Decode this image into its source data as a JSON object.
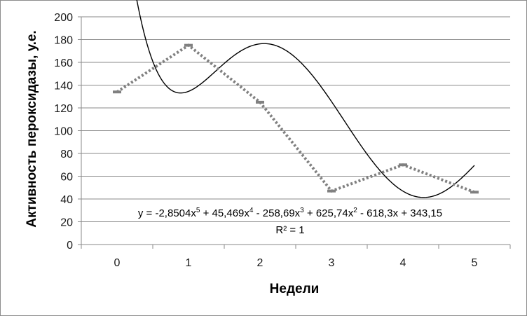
{
  "chart_data": {
    "type": "line",
    "title": "",
    "xlabel": "Недели",
    "ylabel": "Активность пероксидазы, у.е.",
    "x": [
      0,
      1,
      2,
      3,
      4,
      5
    ],
    "categories": [
      "0",
      "1",
      "2",
      "3",
      "4",
      "5"
    ],
    "ylim": [
      0,
      200
    ],
    "yticks": [
      0,
      20,
      40,
      60,
      80,
      100,
      120,
      140,
      160,
      180,
      200
    ],
    "grid": true,
    "legend": "none",
    "series": [
      {
        "style": "dotted-markers",
        "color": "#808080",
        "values": [
          134,
          175,
          125,
          47,
          70,
          46
        ]
      }
    ],
    "trendline": {
      "type": "polynomial",
      "order": 5,
      "coefficients": {
        "c5": -2.8504,
        "c4": 45.469,
        "c3": -258.69,
        "c2": 625.74,
        "c1": -618.3,
        "c0": 343.15
      },
      "xmin": 0,
      "xmax": 5,
      "color": "#000000"
    },
    "equation": {
      "prefix": "y = -2,8504x",
      "e1": "5",
      "t1": " + 45,469x",
      "e2": "4",
      "t2": " - 258,69x",
      "e3": "3",
      "t3": " + 625,74x",
      "e4": "2",
      "t4": " - 618,3x + 343,15"
    },
    "r2_label": "R² = 1"
  }
}
